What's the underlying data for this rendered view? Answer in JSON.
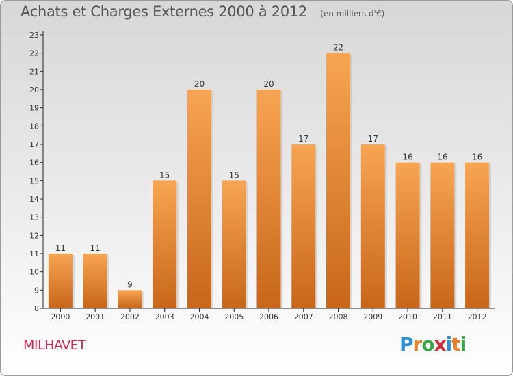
{
  "title": "Achats et Charges Externes 2000 à 2012",
  "unit": "(en milliers d'€)",
  "commune": "MILHAVET",
  "brand": {
    "letters": [
      "P",
      "r",
      "o",
      "x",
      "i",
      "t",
      "i"
    ],
    "colors": [
      "#2f8fd6",
      "#e8802a",
      "#3aa648",
      "#d32d3c",
      "#2f8fd6",
      "#e8802a",
      "#3aa648"
    ]
  },
  "colors": {
    "bar": "#e8882f",
    "bar_light": "#f7a553",
    "bar_dark": "#c8661a",
    "axis": "#222222",
    "text": "#333333"
  },
  "chart_data": {
    "type": "bar",
    "categories": [
      "2000",
      "2001",
      "2002",
      "2003",
      "2004",
      "2005",
      "2006",
      "2007",
      "2008",
      "2009",
      "2010",
      "2011",
      "2012"
    ],
    "values": [
      11,
      11,
      9,
      15,
      20,
      15,
      20,
      17,
      22,
      17,
      16,
      16,
      16
    ],
    "data_labels": [
      "11",
      "11",
      "9",
      "15",
      "20",
      "15",
      "20",
      "17",
      "22",
      "17",
      "16",
      "16",
      "16"
    ],
    "ylim": [
      8,
      23
    ],
    "yticks": [
      8,
      9,
      10,
      11,
      12,
      13,
      14,
      15,
      16,
      17,
      18,
      19,
      20,
      21,
      22,
      23
    ],
    "ytick_labels": [
      "8",
      "9",
      "10",
      "11",
      "12",
      "13",
      "14",
      "15",
      "16",
      "17",
      "18",
      "19",
      "20",
      "21",
      "22",
      "23"
    ],
    "xlabel": "",
    "ylabel": "",
    "grid": false,
    "legend": "none"
  }
}
